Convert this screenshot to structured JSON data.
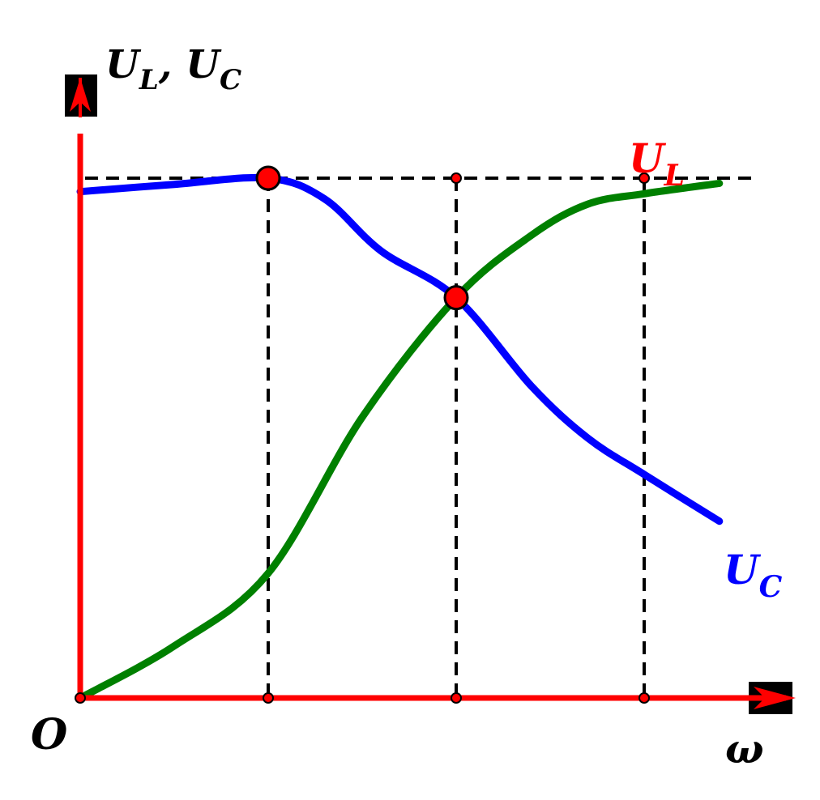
{
  "chart_data": {
    "type": "line",
    "title": "",
    "xlabel": "ω",
    "ylabel_main": "U",
    "ylabel_sub1": "L",
    "ylabel_sep": ", ",
    "ylabel_sub2": "C",
    "origin_label": "O",
    "x_unit": "ω",
    "y_ref_level": 1.0,
    "marked_x": [
      1,
      2,
      3
    ],
    "xlim": [
      0,
      3.4
    ],
    "ylim": [
      0,
      1.0
    ],
    "series": [
      {
        "name_main": "U",
        "name_sub": "C",
        "color": "#0000ff",
        "x": [
          0,
          0.5,
          1.0,
          1.3,
          1.6,
          2.0,
          2.4,
          2.7,
          3.0,
          3.4
        ],
        "y": [
          0.974,
          0.988,
          1.0,
          0.96,
          0.86,
          0.77,
          0.6,
          0.5,
          0.43,
          0.34
        ]
      },
      {
        "name_main": "U",
        "name_sub": "L",
        "color": "#008000",
        "x": [
          0,
          0.5,
          1.0,
          1.5,
          2.0,
          2.4,
          2.7,
          3.0,
          3.4
        ],
        "y": [
          0,
          0.1,
          0.24,
          0.54,
          0.77,
          0.89,
          0.95,
          0.97,
          0.99
        ]
      }
    ],
    "key_points": [
      {
        "x": 1.0,
        "y": 1.0
      },
      {
        "x": 2.0,
        "y": 0.77
      }
    ],
    "colors": {
      "axis": "#ff0000",
      "axis_marker": "#000000",
      "guide": "#000000",
      "point_fill": "#ff0000"
    },
    "grid": false,
    "legend": "none"
  }
}
